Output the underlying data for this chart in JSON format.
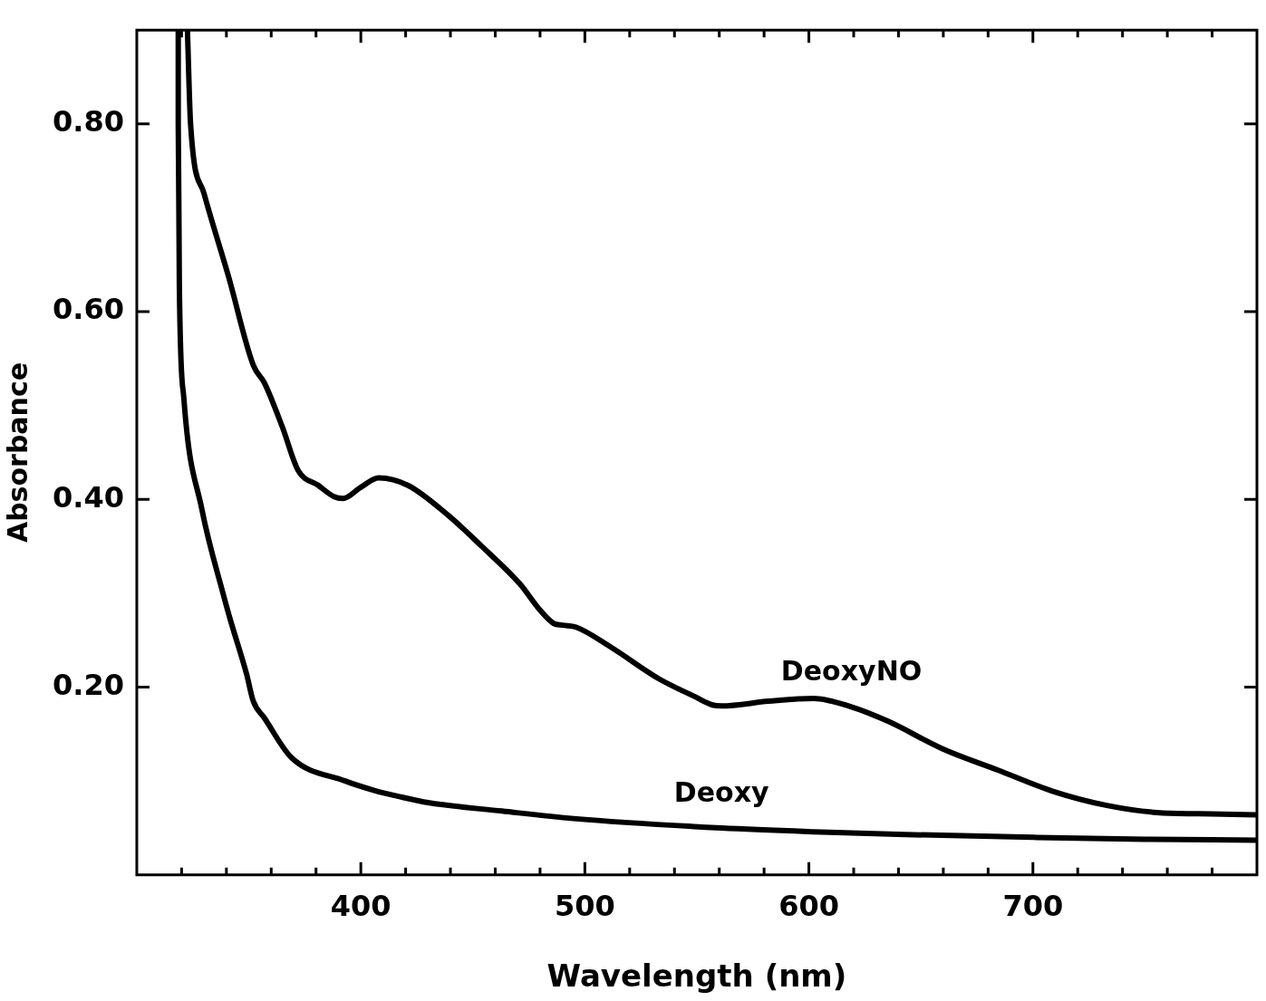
{
  "chart_data": {
    "type": "line",
    "xlabel": "Wavelength (nm)",
    "ylabel": "Absorbance",
    "xlim": [
      300,
      800
    ],
    "ylim": [
      0,
      0.9
    ],
    "xticks": [
      {
        "value": 320,
        "label": null
      },
      {
        "value": 340,
        "label": null
      },
      {
        "value": 360,
        "label": null
      },
      {
        "value": 380,
        "label": null
      },
      400,
      {
        "value": 420,
        "label": null
      },
      {
        "value": 440,
        "label": null
      },
      {
        "value": 460,
        "label": null
      },
      {
        "value": 480,
        "label": null
      },
      500,
      {
        "value": 520,
        "label": null
      },
      {
        "value": 540,
        "label": null
      },
      {
        "value": 560,
        "label": null
      },
      {
        "value": 580,
        "label": null
      },
      600,
      {
        "value": 620,
        "label": null
      },
      {
        "value": 640,
        "label": null
      },
      {
        "value": 660,
        "label": null
      },
      {
        "value": 680,
        "label": null
      },
      700,
      {
        "value": 720,
        "label": null
      },
      {
        "value": 740,
        "label": null
      },
      {
        "value": 760,
        "label": null
      },
      {
        "value": 780,
        "label": null
      }
    ],
    "yticks": [
      {
        "value": 0.2,
        "label": "0.20"
      },
      {
        "value": 0.4,
        "label": "0.40"
      },
      {
        "value": 0.6,
        "label": "0.60"
      },
      {
        "value": 0.8,
        "label": "0.80"
      }
    ],
    "grid": false,
    "legend": false,
    "marker": "none",
    "line_style": "solid",
    "series": [
      {
        "name": "DeoxyNO",
        "color": "#000000",
        "x": [
          322.6,
          324,
          330,
          341,
          352,
          357,
          365,
          372,
          381,
          388,
          392,
          400,
          408,
          421,
          439,
          454,
          471,
          480,
          486,
          490,
          496,
          512,
          533,
          549,
          557,
          561,
          582,
          602,
          619,
          635,
          660,
          684,
          709,
          733,
          758,
          780,
          800
        ],
        "values": [
          0.9,
          0.8,
          0.726,
          0.637,
          0.543,
          0.524,
          0.477,
          0.431,
          0.415,
          0.403,
          0.401,
          0.413,
          0.423,
          0.415,
          0.383,
          0.35,
          0.31,
          0.282,
          0.268,
          0.266,
          0.264,
          0.242,
          0.209,
          0.19,
          0.181,
          0.18,
          0.185,
          0.188,
          0.179,
          0.164,
          0.134,
          0.112,
          0.089,
          0.074,
          0.066,
          0.065,
          0.064
        ]
      },
      {
        "name": "Deoxy",
        "color": "#000000",
        "x": [
          318.5,
          318.5,
          319,
          321,
          329,
          338.7,
          341.6,
          349,
          352,
          357,
          369,
          393,
          406,
          418,
          430,
          463,
          495,
          561,
          602,
          643,
          700,
          750,
          800
        ],
        "values": [
          0.9,
          0.8,
          0.626,
          0.508,
          0.39,
          0.298,
          0.273,
          0.214,
          0.185,
          0.167,
          0.125,
          0.1,
          0.09,
          0.083,
          0.077,
          0.068,
          0.06,
          0.05,
          0.046,
          0.043,
          0.04,
          0.038,
          0.037
        ]
      }
    ]
  }
}
